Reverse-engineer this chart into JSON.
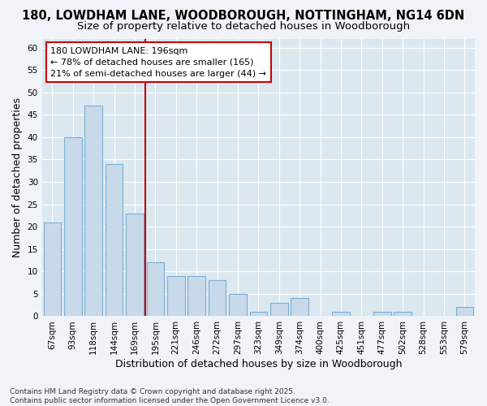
{
  "title": "180, LOWDHAM LANE, WOODBOROUGH, NOTTINGHAM, NG14 6DN",
  "subtitle": "Size of property relative to detached houses in Woodborough",
  "xlabel": "Distribution of detached houses by size in Woodborough",
  "ylabel": "Number of detached properties",
  "categories": [
    "67sqm",
    "93sqm",
    "118sqm",
    "144sqm",
    "169sqm",
    "195sqm",
    "221sqm",
    "246sqm",
    "272sqm",
    "297sqm",
    "323sqm",
    "349sqm",
    "374sqm",
    "400sqm",
    "425sqm",
    "451sqm",
    "477sqm",
    "502sqm",
    "528sqm",
    "553sqm",
    "579sqm"
  ],
  "values": [
    21,
    40,
    47,
    34,
    23,
    12,
    9,
    9,
    8,
    5,
    1,
    3,
    4,
    0,
    1,
    0,
    1,
    1,
    0,
    0,
    2
  ],
  "bar_color": "#c8d9ea",
  "bar_edge_color": "#7bafd4",
  "highlight_bar_index": 5,
  "highlight_line_color": "#c00000",
  "annotation_line1": "180 LOWDHAM LANE: 196sqm",
  "annotation_line2": "← 78% of detached houses are smaller (165)",
  "annotation_line3": "21% of semi-detached houses are larger (44) →",
  "annotation_box_color": "#ffffff",
  "annotation_box_edge_color": "#cc0000",
  "ylim": [
    0,
    62
  ],
  "yticks": [
    0,
    5,
    10,
    15,
    20,
    25,
    30,
    35,
    40,
    45,
    50,
    55,
    60
  ],
  "background_color": "#f0f4f8",
  "plot_bg_color": "#dce8f0",
  "grid_color": "#ffffff",
  "footnote": "Contains HM Land Registry data © Crown copyright and database right 2025.\nContains public sector information licensed under the Open Government Licence v3.0.",
  "title_fontsize": 10.5,
  "subtitle_fontsize": 9.5,
  "axis_label_fontsize": 9,
  "tick_fontsize": 7.5,
  "annotation_fontsize": 8,
  "footnote_fontsize": 6.5
}
